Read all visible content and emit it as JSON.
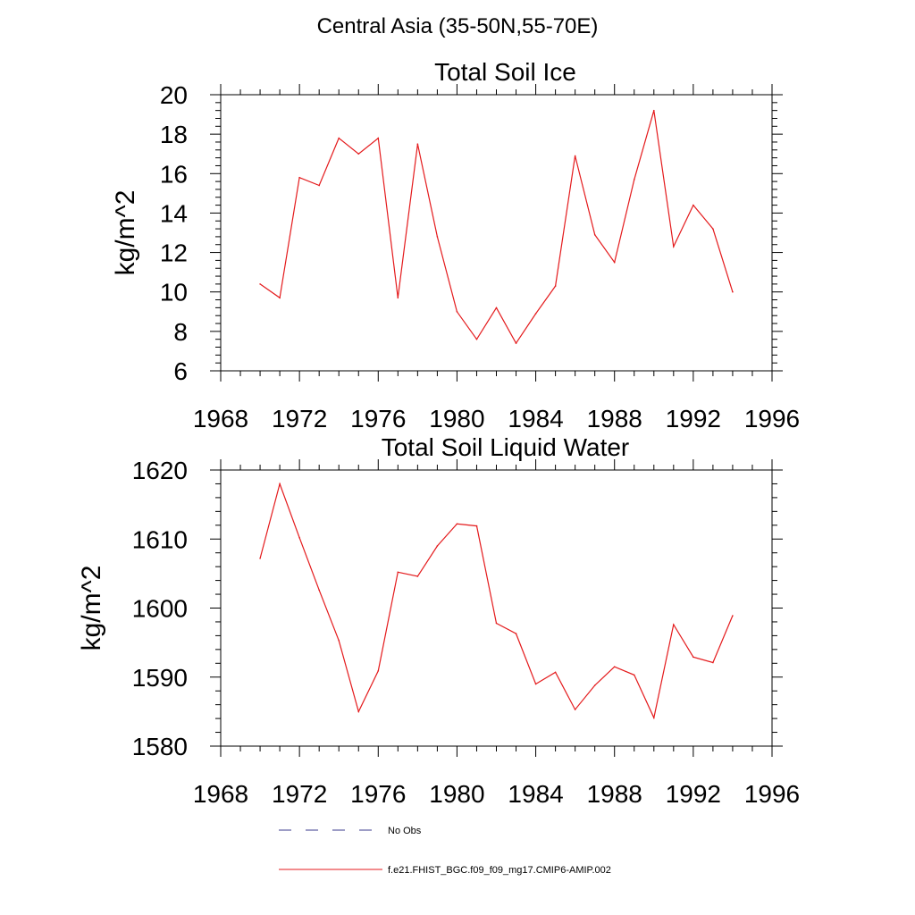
{
  "page": {
    "title": "Central Asia (35-50N,55-70E)"
  },
  "colors": {
    "model_line": "#e41a1c",
    "obs_line": "#3b3b8c",
    "axis": "#000000"
  },
  "legend": {
    "items": [
      {
        "label": "No Obs",
        "style": "dashed",
        "color": "#3b3b8c"
      },
      {
        "label": "f.e21.FHIST_BGC.f09_f09_mg17.CMIP6-AMIP.002",
        "style": "solid",
        "color": "#e41a1c"
      }
    ]
  },
  "chart_data": [
    {
      "type": "line",
      "title": "Total Soil Ice",
      "xlabel": "",
      "ylabel": "kg/m^2",
      "xlim": [
        1968,
        1996
      ],
      "ylim": [
        6,
        20
      ],
      "xticks": [
        1968,
        1972,
        1976,
        1980,
        1984,
        1988,
        1992,
        1996
      ],
      "yticks": [
        6,
        8,
        10,
        12,
        14,
        16,
        18,
        20
      ],
      "grid": false,
      "series": [
        {
          "x": [
            1970,
            1971,
            1972,
            1973,
            1974,
            1975,
            1976,
            1977,
            1978,
            1979,
            1980,
            1981,
            1982,
            1983,
            1984,
            1985,
            1986,
            1987,
            1988,
            1989,
            1990,
            1991,
            1992,
            1993,
            1994
          ],
          "values": [
            10.4,
            9.7,
            15.8,
            15.4,
            17.8,
            17.0,
            17.8,
            9.7,
            17.5,
            12.8,
            9.0,
            7.6,
            9.2,
            7.4,
            8.9,
            10.3,
            16.9,
            12.9,
            11.5,
            15.7,
            19.2,
            12.3,
            14.4,
            13.2,
            10.0
          ]
        }
      ]
    },
    {
      "type": "line",
      "title": "Total Soil Liquid Water",
      "xlabel": "",
      "ylabel": "kg/m^2",
      "xlim": [
        1968,
        1996
      ],
      "ylim": [
        1580,
        1620
      ],
      "xticks": [
        1968,
        1972,
        1976,
        1980,
        1984,
        1988,
        1992,
        1996
      ],
      "yticks": [
        1580,
        1590,
        1600,
        1610,
        1620
      ],
      "grid": false,
      "series": [
        {
          "x": [
            1970,
            1971,
            1972,
            1973,
            1974,
            1975,
            1976,
            1977,
            1978,
            1979,
            1980,
            1981,
            1982,
            1983,
            1984,
            1985,
            1986,
            1987,
            1988,
            1989,
            1990,
            1991,
            1992,
            1993,
            1994
          ],
          "values": [
            1607.2,
            1618.0,
            1610.2,
            1602.6,
            1595.3,
            1585.0,
            1590.9,
            1605.2,
            1604.6,
            1609.0,
            1612.2,
            1611.9,
            1597.8,
            1596.3,
            1589.0,
            1590.7,
            1585.3,
            1588.8,
            1591.5,
            1590.3,
            1584.1,
            1597.6,
            1592.9,
            1592.1,
            1598.9
          ]
        }
      ]
    }
  ]
}
